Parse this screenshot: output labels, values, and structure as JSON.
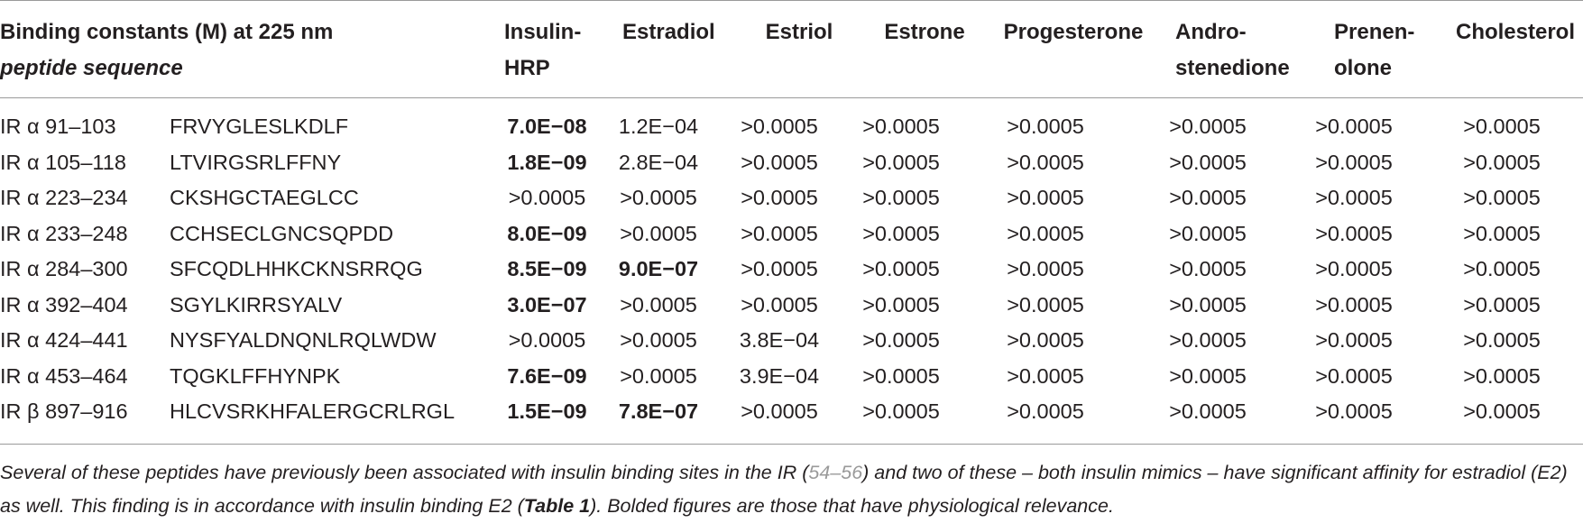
{
  "header": {
    "title": "Binding constants (M) at 225 nm",
    "subtitle": "peptide sequence",
    "columns": [
      {
        "line1": "Insulin-",
        "line2": "HRP"
      },
      {
        "line1": "Estradiol",
        "line2": ""
      },
      {
        "line1": "Estriol",
        "line2": ""
      },
      {
        "line1": "Estrone",
        "line2": ""
      },
      {
        "line1": "Progesterone",
        "line2": ""
      },
      {
        "line1": "Andro-",
        "line2": "stenedione"
      },
      {
        "line1": "Prenen-",
        "line2": "olone"
      },
      {
        "line1": "Cholesterol",
        "line2": ""
      }
    ]
  },
  "rows": [
    {
      "label": "IR α 91–103",
      "seq": "FRVYGLESLKDLF",
      "v": [
        "7.0E−08",
        "1.2E−04",
        ">0.0005",
        ">0.0005",
        ">0.0005",
        ">0.0005",
        ">0.0005",
        ">0.0005"
      ],
      "bold": [
        true,
        false,
        false,
        false,
        false,
        false,
        false,
        false
      ]
    },
    {
      "label": "IR α 105–118",
      "seq": "LTVIRGSRLFFNY",
      "v": [
        "1.8E−09",
        "2.8E−04",
        ">0.0005",
        ">0.0005",
        ">0.0005",
        ">0.0005",
        ">0.0005",
        ">0.0005"
      ],
      "bold": [
        true,
        false,
        false,
        false,
        false,
        false,
        false,
        false
      ]
    },
    {
      "label": "IR α 223–234",
      "seq": "CKSHGCTAEGLCC",
      "v": [
        ">0.0005",
        ">0.0005",
        ">0.0005",
        ">0.0005",
        ">0.0005",
        ">0.0005",
        ">0.0005",
        ">0.0005"
      ],
      "bold": [
        false,
        false,
        false,
        false,
        false,
        false,
        false,
        false
      ]
    },
    {
      "label": "IR α 233–248",
      "seq": "CCHSECLGNCSQPDD",
      "v": [
        "8.0E−09",
        ">0.0005",
        ">0.0005",
        ">0.0005",
        ">0.0005",
        ">0.0005",
        ">0.0005",
        ">0.0005"
      ],
      "bold": [
        true,
        false,
        false,
        false,
        false,
        false,
        false,
        false
      ]
    },
    {
      "label": "IR α 284–300",
      "seq": "SFCQDLHHKCKNSRRQG",
      "v": [
        "8.5E−09",
        "9.0E−07",
        ">0.0005",
        ">0.0005",
        ">0.0005",
        ">0.0005",
        ">0.0005",
        ">0.0005"
      ],
      "bold": [
        true,
        true,
        false,
        false,
        false,
        false,
        false,
        false
      ]
    },
    {
      "label": "IR α 392–404",
      "seq": "SGYLKIRRSYALV",
      "v": [
        "3.0E−07",
        ">0.0005",
        ">0.0005",
        ">0.0005",
        ">0.0005",
        ">0.0005",
        ">0.0005",
        ">0.0005"
      ],
      "bold": [
        true,
        false,
        false,
        false,
        false,
        false,
        false,
        false
      ]
    },
    {
      "label": "IR α 424–441",
      "seq": "NYSFYALDNQNLRQLWDW",
      "v": [
        ">0.0005",
        ">0.0005",
        "3.8E−04",
        ">0.0005",
        ">0.0005",
        ">0.0005",
        ">0.0005",
        ">0.0005"
      ],
      "bold": [
        false,
        false,
        false,
        false,
        false,
        false,
        false,
        false
      ]
    },
    {
      "label": "IR α 453–464",
      "seq": "TQGKLFFHYNPK",
      "v": [
        "7.6E−09",
        ">0.0005",
        "3.9E−04",
        ">0.0005",
        ">0.0005",
        ">0.0005",
        ">0.0005",
        ">0.0005"
      ],
      "bold": [
        true,
        false,
        false,
        false,
        false,
        false,
        false,
        false
      ]
    },
    {
      "label": "IR β 897–916",
      "seq": "HLCVSRKHFALERGCRLRGL",
      "v": [
        "1.5E−09",
        "7.8E−07",
        ">0.0005",
        ">0.0005",
        ">0.0005",
        ">0.0005",
        ">0.0005",
        ">0.0005"
      ],
      "bold": [
        true,
        true,
        false,
        false,
        false,
        false,
        false,
        false
      ]
    }
  ],
  "footnote": {
    "part1": "Several of these peptides have previously been associated with insulin binding sites in the IR (",
    "ref": "54–56",
    "part2": ") and two of these – both insulin mimics – have significant affinity for estradiol (E2) as well. This finding is in accordance with insulin binding E2 (",
    "table_ref": "Table 1",
    "part3": "). Bolded figures are those that have physiological relevance."
  }
}
